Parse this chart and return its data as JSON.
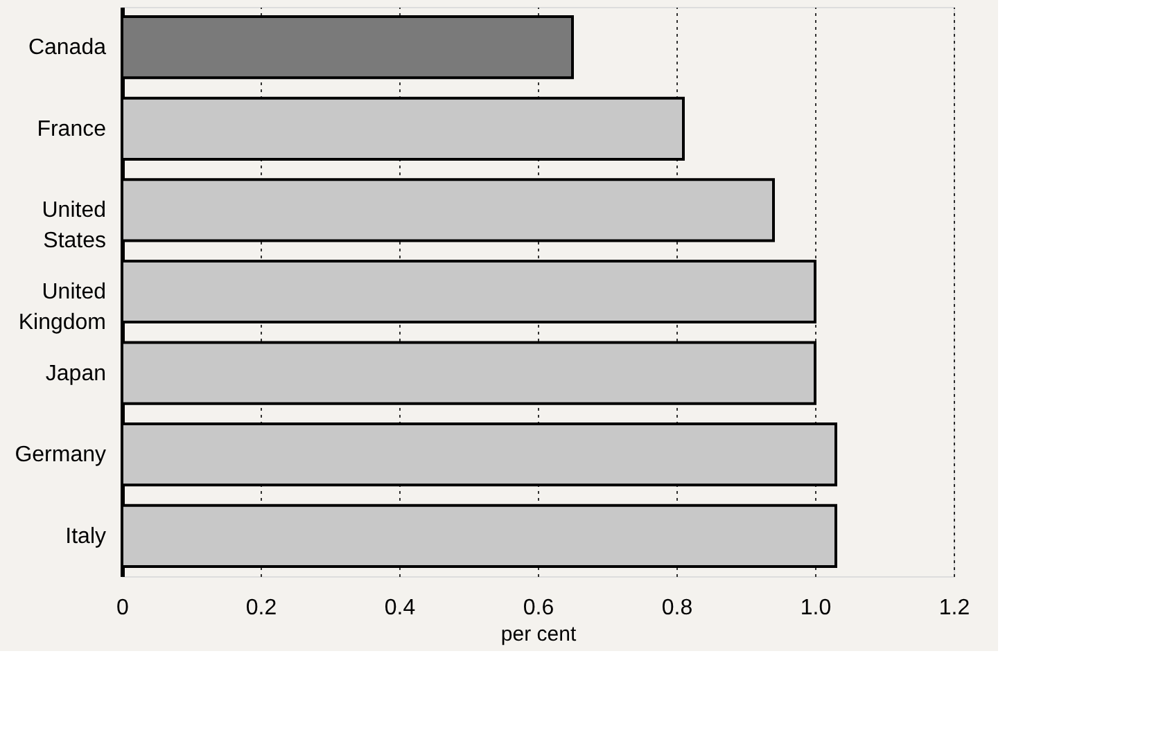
{
  "chart_data": {
    "type": "bar",
    "orientation": "horizontal",
    "xlabel": "per cent",
    "categories": [
      "Canada",
      "France",
      "United States",
      "United Kingdom",
      "Japan",
      "Germany",
      "Italy"
    ],
    "values": [
      0.65,
      0.81,
      0.94,
      1.0,
      1.0,
      1.03,
      1.03
    ],
    "colors": [
      "#7a7a7a",
      "#c8c8c8",
      "#c8c8c8",
      "#c8c8c8",
      "#c8c8c8",
      "#c8c8c8",
      "#c8c8c8"
    ],
    "xlim": [
      0,
      1.2
    ],
    "xticks": [
      0,
      {
        "value": 0.2,
        "label": "0.2"
      },
      {
        "value": 0.4,
        "label": "0.4"
      },
      {
        "value": 0.6,
        "label": "0.6"
      },
      {
        "value": 0.8,
        "label": "0.8"
      },
      {
        "value": 1.0,
        "label": "1.0"
      },
      {
        "value": 1.2,
        "label": "1.2"
      }
    ],
    "grid": "x"
  }
}
